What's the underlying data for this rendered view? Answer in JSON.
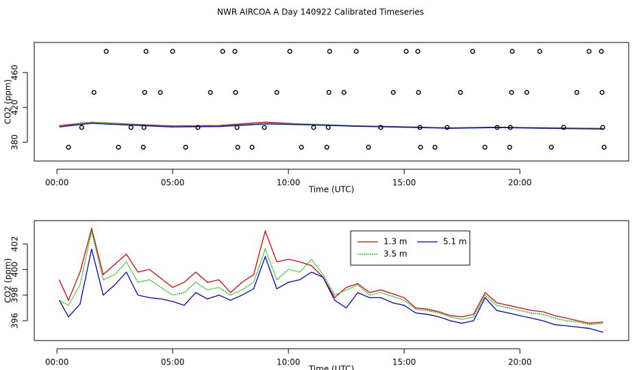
{
  "chart_data": [
    {
      "type": "line",
      "title": "NWR AIRCOA A  Day 140922  Calibrated Timeseries",
      "x_label": "Time (UTC)",
      "y_label": "CO2 (ppm)",
      "xlim": [
        -0.98,
        24.7
      ],
      "xticks": [
        {
          "value": 0,
          "label": "00:00"
        },
        {
          "value": 5,
          "label": "05:00"
        },
        {
          "value": 10,
          "label": "10:00"
        },
        {
          "value": 15,
          "label": "15:00"
        },
        {
          "value": 20,
          "label": "20:00"
        }
      ],
      "ylim": [
        358.4,
        494.6
      ],
      "yticks": [
        380,
        420,
        460
      ],
      "x": [
        0.1,
        1.5,
        3,
        5,
        7,
        9,
        11,
        13,
        15,
        17,
        19,
        21,
        23.6
      ],
      "series": [
        {
          "color": "#dd0000",
          "values": [
            399,
            403,
            401,
            398.6,
            399.2,
            403,
            400.3,
            398.9,
            397.8,
            396.4,
            397.4,
            396.7,
            395.9
          ]
        },
        {
          "color": "#00bb00",
          "linestyle": "dotted",
          "values": [
            397.6,
            403,
            400.6,
            398,
            398.6,
            401.6,
            400.8,
            398.8,
            397.6,
            396.3,
            397.2,
            396.5,
            395.8
          ]
        },
        {
          "color": "#0000cc",
          "values": [
            397.6,
            401.6,
            399.8,
            397.5,
            398,
            401,
            399.8,
            398.2,
            397.2,
            396,
            396.8,
            396,
            395.1
          ]
        }
      ],
      "points": {
        "x": [
          2.13,
          3.85,
          5.0,
          7.16,
          7.69,
          10.06,
          11.78,
          12.93,
          15.09,
          15.59,
          17.96,
          19.67,
          20.86,
          22.99,
          23.52,
          1.6,
          3.79,
          4.47,
          6.63,
          7.72,
          9.5,
          11.75,
          12.4,
          14.53,
          15.62,
          17.43,
          19.64,
          20.3,
          22.46,
          23.55,
          1.07,
          3.2,
          3.76,
          6.09,
          7.78,
          8.96,
          11.09,
          11.72,
          13.99,
          15.68,
          16.86,
          19.02,
          19.59,
          21.89,
          23.58,
          0.5,
          2.66,
          3.73,
          5.56,
          7.81,
          8.43,
          10.56,
          11.66,
          13.46,
          15.71,
          16.33,
          18.49,
          19.56,
          21.36,
          23.64
        ],
        "values": [
          484.4,
          484.4,
          484.4,
          484.4,
          484.4,
          484.4,
          484.4,
          484.4,
          484.4,
          484.4,
          484.4,
          484.4,
          484.4,
          484.4,
          484.4,
          437.2,
          437.2,
          437.2,
          437.2,
          437.2,
          437.2,
          437.2,
          437.2,
          437.2,
          437.2,
          437.2,
          437.2,
          437.2,
          437.2,
          437.2,
          397,
          397,
          397,
          397,
          397,
          397,
          397,
          397,
          397,
          397,
          397,
          397,
          397,
          397,
          397,
          374.2,
          374.2,
          374.2,
          374.2,
          374.2,
          374.2,
          374.2,
          374.2,
          374.2,
          374.2,
          374.2,
          374.2,
          374.2,
          374.2,
          374.2
        ]
      }
    },
    {
      "type": "line",
      "x_label": "Time (UTC)",
      "y_label": "CO2 (ppm)",
      "xlim": [
        -0.98,
        24.7
      ],
      "xticks": [
        {
          "value": 0,
          "label": "00:00"
        },
        {
          "value": 5,
          "label": "05:00"
        },
        {
          "value": 10,
          "label": "10:00"
        },
        {
          "value": 15,
          "label": "15:00"
        },
        {
          "value": 20,
          "label": "20:00"
        }
      ],
      "ylim": [
        394.45,
        403.82
      ],
      "yticks": [
        396,
        398,
        400,
        402
      ],
      "legend": "top-center",
      "x": [
        0.1,
        0.5,
        1.0,
        1.5,
        2.0,
        2.5,
        3.0,
        3.5,
        4.0,
        4.5,
        5.0,
        5.5,
        6.0,
        6.5,
        7.0,
        7.5,
        8.0,
        8.5,
        9.0,
        9.5,
        10.0,
        10.5,
        11.0,
        11.5,
        12.0,
        12.5,
        13.0,
        13.5,
        14.0,
        14.5,
        15.0,
        15.5,
        16.0,
        16.5,
        17.0,
        17.5,
        18.0,
        18.5,
        19.0,
        19.5,
        20.0,
        20.5,
        21.0,
        21.5,
        22.0,
        22.5,
        23.0,
        23.6
      ],
      "series": [
        {
          "name": "1.3 m",
          "color": "#dd0000",
          "values": [
            399.2,
            397.6,
            399.8,
            403.2,
            399.6,
            400.4,
            401.2,
            399.8,
            400.0,
            399.3,
            398.6,
            399.0,
            399.8,
            399.0,
            399.2,
            398.2,
            399.0,
            399.6,
            403.0,
            400.6,
            400.8,
            400.6,
            400.3,
            399.4,
            397.8,
            398.6,
            398.9,
            398.2,
            398.4,
            398.1,
            397.8,
            397.0,
            396.9,
            396.7,
            396.4,
            396.3,
            396.5,
            398.2,
            397.4,
            397.2,
            397.0,
            396.8,
            396.7,
            396.4,
            396.2,
            396.0,
            395.8,
            395.9
          ]
        },
        {
          "name": "3.5 m",
          "color": "#00bb00",
          "linestyle": "dotted",
          "values": [
            397.6,
            397.2,
            398.8,
            403.0,
            399.2,
            399.6,
            400.6,
            399.0,
            399.2,
            398.6,
            398.0,
            398.2,
            399.0,
            398.4,
            398.6,
            398.0,
            398.4,
            399.0,
            401.6,
            399.2,
            400.0,
            399.8,
            400.8,
            399.6,
            398.0,
            398.4,
            398.8,
            398.0,
            398.2,
            397.9,
            397.6,
            396.9,
            396.8,
            396.6,
            396.3,
            396.1,
            396.3,
            398.0,
            397.2,
            397.0,
            396.8,
            396.6,
            396.5,
            396.2,
            396.0,
            395.9,
            395.7,
            395.8
          ]
        },
        {
          "name": "5.1 m",
          "color": "#0000cc",
          "values": [
            397.6,
            396.3,
            397.3,
            401.6,
            398.0,
            398.8,
            399.8,
            398.0,
            397.8,
            397.7,
            397.5,
            397.2,
            398.2,
            397.7,
            398.0,
            397.6,
            398.0,
            398.5,
            401.0,
            398.5,
            399.0,
            399.2,
            399.8,
            399.4,
            397.6,
            397.0,
            398.2,
            397.8,
            397.8,
            397.4,
            397.2,
            396.6,
            396.5,
            396.3,
            396.0,
            395.8,
            396.0,
            397.8,
            396.8,
            396.6,
            396.4,
            396.2,
            396.0,
            395.7,
            395.6,
            395.5,
            395.4,
            395.1
          ]
        }
      ]
    }
  ]
}
